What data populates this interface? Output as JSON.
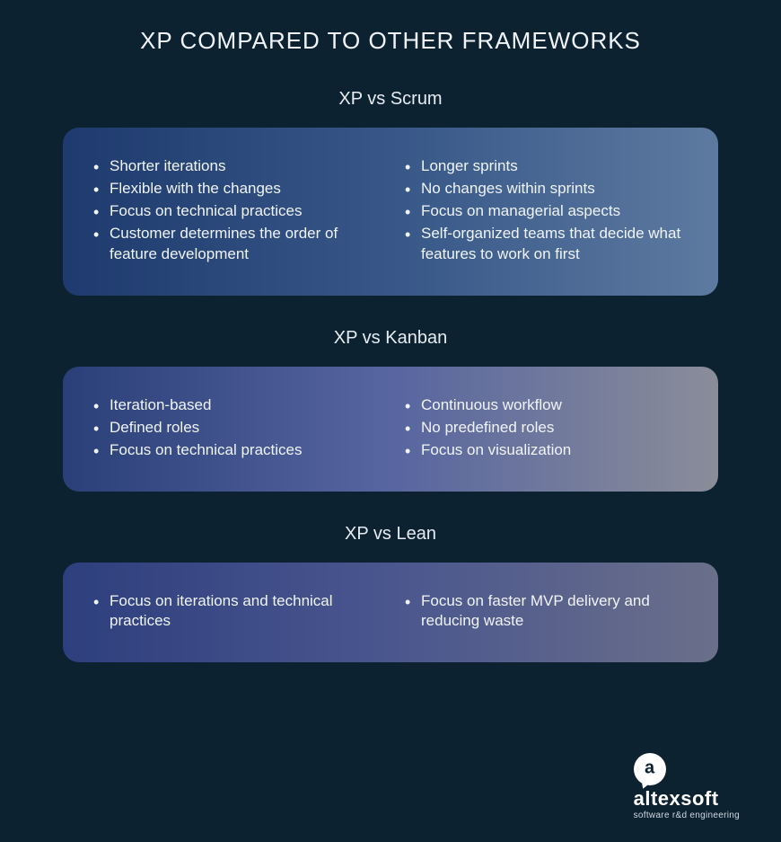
{
  "type": "infographic",
  "background_color": "#0d2231",
  "text_color": "#e6ecf2",
  "title": "XP COMPARED TO OTHER FRAMEWORKS",
  "title_fontsize": 26,
  "card_border_radius": 18,
  "card_padding": 32,
  "body_fontsize": 17,
  "sections": [
    {
      "key": "scrum",
      "heading_left": "XP vs ",
      "heading_right": "Scrum",
      "gradient_colors": [
        "#1e3a6e",
        "#3a5a8a",
        "#5d7aa0"
      ],
      "left": [
        "Shorter iterations",
        "Flexible with the changes",
        "Focus on technical practices",
        "Customer determines the order of feature development"
      ],
      "right": [
        "Longer sprints",
        "No changes within sprints",
        "Focus on managerial aspects",
        "Self-organized teams that decide what features to work on first"
      ]
    },
    {
      "key": "kanban",
      "heading_left": "XP vs ",
      "heading_right": "Kanban",
      "gradient_colors": [
        "#2a3f78",
        "#5765a0",
        "#8a8d99"
      ],
      "left": [
        "Iteration-based",
        "Defined roles",
        "Focus on technical practices"
      ],
      "right": [
        "Continuous workflow",
        "No predefined roles",
        "Focus on visualization"
      ]
    },
    {
      "key": "lean",
      "heading_left": "XP vs ",
      "heading_right": "Lean",
      "gradient_colors": [
        "#2e3f7e",
        "#4a568e",
        "#6a6f8a"
      ],
      "left": [
        "Focus on iterations and technical  practices"
      ],
      "right": [
        "Focus on faster MVP delivery and reducing waste"
      ]
    }
  ],
  "logo": {
    "glyph": "a",
    "brand": "altexsoft",
    "tagline": "software r&d engineering",
    "brand_color": "#ffffff",
    "bubble_color": "#ffffff",
    "glyph_color": "#0d2231"
  }
}
